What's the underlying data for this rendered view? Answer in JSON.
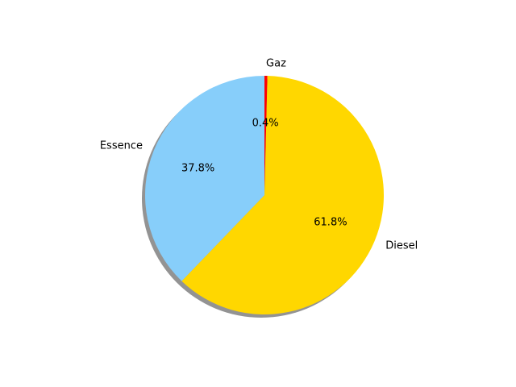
{
  "chart_data": {
    "type": "pie",
    "start_angle": 90,
    "clockwise": true,
    "shadow": true,
    "slices": [
      {
        "label": "Gaz",
        "value": 0.4,
        "pct_label": "0.4%",
        "color": "#ff0000"
      },
      {
        "label": "Diesel",
        "value": 61.8,
        "pct_label": "61.8%",
        "color": "#ffd700"
      },
      {
        "label": "Essence",
        "value": 37.8,
        "pct_label": "37.8%",
        "color": "#87cefa"
      }
    ]
  }
}
